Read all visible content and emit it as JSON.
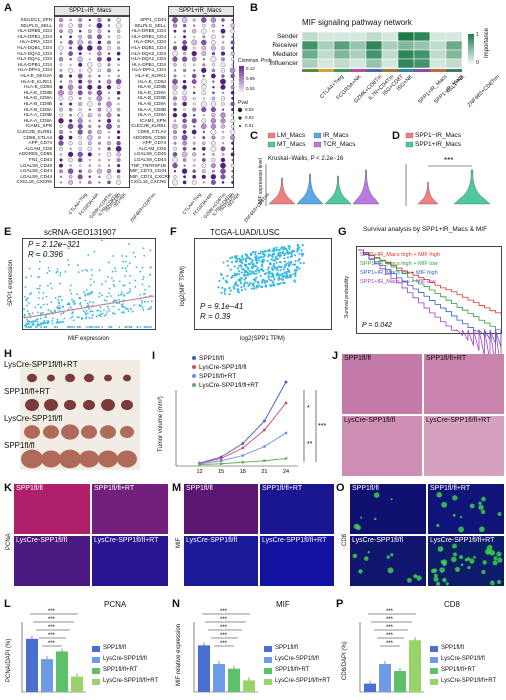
{
  "panels": {
    "A": {
      "label": "A",
      "strip_left": "SPP1−IR_Macs",
      "strip_right": "SPP1+IR_Macs",
      "pairs": [
        "SIGLEC1_SPN",
        "SELPLG_SELL",
        "HLA-DRB5_CD4",
        "HLA-DRB1_CD4",
        "HLA-DRA_CD4",
        "HLA-DQB1_CD4",
        "HLA-DQA2_CD4",
        "HLA-DQA1_CD4",
        "HLA-DPB1_CD4",
        "HLA-DPA1_CD4",
        "HLA-E_NKG2A",
        "HLA-E_KLRC1",
        "HLA-E_CD94",
        "HLA-E_CD8B",
        "HLA-E_CD8A",
        "HLA-B_CD8B",
        "HLA-B_CD8A",
        "HLA-A_CD8B",
        "HLA-A_CD8A",
        "ICAM1_SPN",
        "CLEC2B_KLRB1",
        "CD86_CTLA4",
        "APP_CD74",
        "ALCAM_CD6",
        "ADGRE5_CD55",
        "FN1_CD44",
        "LGALS9_CD45",
        "LGALS9_CD44",
        "LGALS9_CD44",
        "CXCL16_CXCR6"
      ],
      "pairs_right": [
        "SPP1_CD44",
        "SELPLG_SELL",
        "HLA-DRB5_CD4",
        "HLA-DRB1_CD4",
        "HLA-DRA_CD4",
        "HLA-DQB1_CD4",
        "HLA-DQA2_CD4",
        "HLA-DQA1_CD4",
        "HLA-DPB1_CD4",
        "HLA-DPA1_CD4",
        "HLA-E_KLRK1",
        "HLA-E_CD94",
        "HLA-E_CD8B",
        "HLA-E_CD8A",
        "HLA-B_CD8B",
        "HLA-B_CD8A",
        "HLA-A_CD8B",
        "HLA-A_CD8A",
        "ICAM1_SPN",
        "CLEC2B_KLRB1",
        "CD86_CTLA4",
        "ADGRE5_CD55",
        "APP_CD74",
        "ALCAM_CD6",
        "LGALS9_CD45",
        "LGALS9_CD44",
        "TNF_TNFRSF1B",
        "MIF_CD74_CD44",
        "MIF_CD74_CXCR4",
        "CXCL16_CXCR6"
      ],
      "x_groups": [
        "CTLA4+Treg",
        "FCGR3A+NK",
        "GZMK+CD8Tm",
        "IL7R+CD4Tm",
        "ISG+CD8T",
        "ISG+NK",
        "ZNF683+CD8Trm"
      ],
      "legend_title": "Commun. Prob.",
      "legend_ticks": [
        "0.12",
        "0.08",
        "0.04"
      ],
      "size_title": "Pval",
      "size_ticks": [
        "0.04",
        "0.02",
        "0.01"
      ]
    },
    "B": {
      "label": "B",
      "title": "MIF signaling pathway network",
      "rows": [
        "Sender",
        "Receiver",
        "Mediator",
        "Influencer"
      ],
      "cols": [
        "CTLA4+Treg",
        "FCGR3A+NK",
        "GZMK+CD8Tm",
        "IL7R+CD4Tm",
        "ISG+CD8T",
        "ISG+NK",
        "SPP1+IR_Macs",
        "SPP1−IR_Macs",
        "XCL1+NK",
        "ZNF683+CD8Trm"
      ],
      "legend_title": "Importance",
      "legend_ticks": [
        "1",
        "0"
      ]
    },
    "C": {
      "label": "C",
      "legend": [
        "LM_Macs",
        "IR_Macs",
        "MT_Macs",
        "TCR_Macs"
      ],
      "stat": "Kruskal−Wallis, P < 2.2e−16",
      "ylabel": "MIF expression level"
    },
    "D": {
      "label": "D",
      "legend": [
        "SPP1−IR_Macs",
        "SPP1+IR_Macs"
      ],
      "sig": "***"
    },
    "E": {
      "label": "E",
      "title": "scRNA-GEO131907",
      "p": "P = 2.12e−321",
      "r": "R = 0.396",
      "xlabel": "MIF expression",
      "ylabel": "SPP1 expression"
    },
    "F": {
      "label": "F",
      "title": "TCGA-LUAD/LUSC",
      "p": "P = 9.1e−41",
      "r": "R = 0.39",
      "xlabel": "log2(SPP1 TPM)",
      "ylabel": "log2(MIF TPM)"
    },
    "G": {
      "label": "G",
      "title": "Survival analysis by SPP1+IR_Macs & MIF",
      "legend": [
        "SPP1+IR_Macs high + MIF high",
        "SPP1+IR_Macs high + MIF low",
        "SPP1+IR_Macs low + MIF high",
        "SPP1+IR_Macs low + MIF low"
      ],
      "p": "P = 0.042",
      "ylabel": "Survival probability"
    },
    "H": {
      "label": "H",
      "rows": [
        "LysCre-SPP1fl/fl+RT",
        "SPP1fl/fl+RT",
        "LysCre-SPP1fl/fl",
        "SPP1fl/fl"
      ]
    },
    "I": {
      "label": "I",
      "legend": [
        "SPP1fl/fl",
        "LysCre-SPP1fl/fl",
        "SPP1fl/fl+RT",
        "LysCre-SPP1fl/fl+RT"
      ],
      "ylabel": "Tumor volume (mm³)",
      "xticks": [
        "12",
        "15",
        "18",
        "21",
        "24"
      ],
      "sigs": [
        "*",
        "**",
        "***"
      ]
    },
    "J": {
      "label": "J",
      "tiles": [
        "SPP1fl/fl",
        "SPP1fl/fl+RT",
        "LysCre-SPP1fl/fl",
        "LysCre-SPP1fl/fl+RT"
      ]
    },
    "K": {
      "label": "K",
      "stain": "PCNA",
      "tiles": [
        "SPP1fl/fl",
        "SPP1fl/fl+RT",
        "LysCre-SPP1fl/fl",
        "LysCre-SPP1fl/fl+RT"
      ]
    },
    "M": {
      "label": "M",
      "stain": "MIF",
      "tiles": [
        "SPP1fl/fl",
        "SPP1fl/fl+RT",
        "LysCre-SPP1fl/fl",
        "LysCre-SPP1fl/fl+RT"
      ]
    },
    "O": {
      "label": "O",
      "stain": "CD8",
      "tiles": [
        "SPP1fl/fl",
        "SPP1fl/fl+RT",
        "LysCre-SPP1fl/fl",
        "LysCre-SPP1fl/fl+RT"
      ]
    },
    "L": {
      "label": "L",
      "title": "PCNA",
      "ylabel": "PCNA/DAPI (%)",
      "legend": [
        "SPP1fl/fl",
        "LysCre-SPP1fl/fl",
        "SPP1fl/fl+RT",
        "LysCre-SPP1fl/fl+RT"
      ],
      "sig": "***"
    },
    "N": {
      "label": "N",
      "title": "MIF",
      "ylabel": "MIF relative expression",
      "legend": [
        "SPP1fl/fl",
        "LysCre-SPP1fl/fl",
        "SPP1fl/fl+RT",
        "LysCre-SPP1fl/fl+RT"
      ],
      "sig": "***"
    },
    "P": {
      "label": "P",
      "title": "CD8",
      "ylabel": "CD8/DAPI (%)",
      "legend": [
        "SPP1fl/fl",
        "LysCre-SPP1fl/fl",
        "SPP1fl/fl+RT",
        "LysCre-SPP1fl/fl+RT"
      ],
      "sig": "***"
    }
  },
  "colors": {
    "bar1": "#4a6fd1",
    "bar2": "#6e9be8",
    "bar3": "#5ec06a",
    "bar4": "#9ad36a",
    "scatter": "#36b8e0",
    "heat_high": "#1a7a4a",
    "heat_low": "#e8f5ee",
    "violin_red": "#f08080",
    "violin_green": "#50c8a0",
    "violin_blue": "#5aa8e8",
    "violin_purple": "#b87ae0"
  },
  "chart_data": [
    {
      "type": "bar",
      "title": "PCNA",
      "ylabel": "PCNA/DAPI (%)",
      "categories": [
        "SPP1fl/fl",
        "LysCre-SPP1fl/fl",
        "SPP1fl/fl+RT",
        "LysCre-SPP1fl/fl+RT"
      ],
      "values": [
        76,
        47,
        58,
        22
      ],
      "ylim": [
        0,
        100
      ]
    },
    {
      "type": "bar",
      "title": "MIF",
      "ylabel": "MIF relative expression",
      "categories": [
        "SPP1fl/fl",
        "LysCre-SPP1fl/fl",
        "SPP1fl/fl+RT",
        "LysCre-SPP1fl/fl+RT"
      ],
      "values": [
        1.0,
        0.6,
        0.5,
        0.25
      ],
      "ylim": [
        0,
        1.5
      ]
    },
    {
      "type": "bar",
      "title": "CD8",
      "ylabel": "CD8/DAPI (%)",
      "categories": [
        "SPP1fl/fl",
        "LysCre-SPP1fl/fl",
        "SPP1fl/fl+RT",
        "LysCre-SPP1fl/fl+RT"
      ],
      "values": [
        6,
        20,
        15,
        37
      ],
      "ylim": [
        0,
        50
      ]
    },
    {
      "type": "line",
      "ylabel": "Tumor volume (mm³)",
      "x": [
        12,
        15,
        18,
        21,
        24
      ],
      "series": [
        {
          "name": "SPP1fl/fl",
          "values": [
            20,
            60,
            150,
            300,
            560
          ]
        },
        {
          "name": "LysCre-SPP1fl/fl",
          "values": [
            20,
            50,
            120,
            240,
            420
          ]
        },
        {
          "name": "SPP1fl/fl+RT",
          "values": [
            15,
            35,
            70,
            130,
            220
          ]
        },
        {
          "name": "LysCre-SPP1fl/fl+RT",
          "values": [
            10,
            15,
            25,
            35,
            50
          ]
        }
      ]
    }
  ]
}
